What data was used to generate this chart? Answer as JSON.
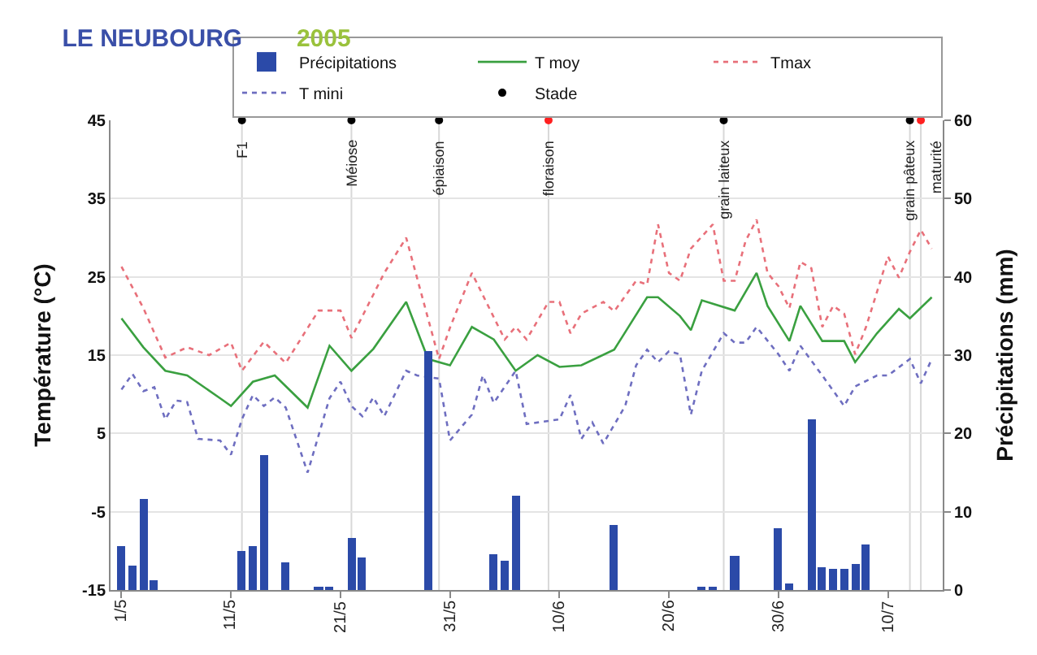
{
  "chart_data": {
    "type": "line",
    "title": "LE NEUBOURG",
    "subtitle": "2005",
    "ylabel": "Température (°C)",
    "y2label": "Précipitations (mm)",
    "xlim": [
      "2005-04-30",
      "2005-07-15"
    ],
    "xticks": [
      {
        "value": "2005-05-01",
        "label": "1/5"
      },
      {
        "value": "2005-05-11",
        "label": "11/5"
      },
      {
        "value": "2005-05-21",
        "label": "21/5"
      },
      {
        "value": "2005-05-31",
        "label": "31/5"
      },
      {
        "value": "2005-06-10",
        "label": "10/6"
      },
      {
        "value": "2005-06-20",
        "label": "20/6"
      },
      {
        "value": "2005-06-30",
        "label": "30/6"
      },
      {
        "value": "2005-07-10",
        "label": "10/7"
      }
    ],
    "ylim": [
      -15,
      45
    ],
    "yticks": [
      -15,
      -5,
      5,
      15,
      25,
      35,
      45
    ],
    "y2lim": [
      0,
      60
    ],
    "y2ticks": [
      0,
      10,
      20,
      30,
      40,
      50,
      60
    ],
    "grid": "y",
    "legend": "top right",
    "series": [
      {
        "name": "Précipitations",
        "type": "bar",
        "axis": "y2",
        "color": "#2b4aa8",
        "x": [
          "2005-05-01",
          "2005-05-02",
          "2005-05-03",
          "2005-05-04",
          "2005-05-12",
          "2005-05-13",
          "2005-05-14",
          "2005-05-16",
          "2005-05-19",
          "2005-05-20",
          "2005-05-22",
          "2005-05-23",
          "2005-05-29",
          "2005-06-04",
          "2005-06-05",
          "2005-06-06",
          "2005-06-15",
          "2005-06-23",
          "2005-06-24",
          "2005-06-26",
          "2005-06-30",
          "2005-07-01",
          "2005-07-03",
          "2005-07-04",
          "2005-07-05",
          "2005-07-06",
          "2005-07-07",
          "2005-07-08"
        ],
        "values": [
          5.6,
          3.1,
          11.6,
          1.2,
          5.0,
          5.6,
          17.2,
          3.5,
          0.4,
          0.4,
          6.6,
          4.1,
          30.5,
          4.6,
          3.7,
          12.0,
          8.3,
          0.3,
          0.3,
          4.3,
          7.9,
          0.9,
          21.8,
          3.0,
          2.6,
          2.6,
          3.4,
          5.9
        ]
      },
      {
        "name": "T moy",
        "line_style": "solid",
        "color": "#3aa040",
        "x": [
          "2005-05-01",
          "2005-05-03",
          "2005-05-05",
          "2005-05-07",
          "2005-05-10",
          "2005-05-11",
          "2005-05-13",
          "2005-05-15",
          "2005-05-18",
          "2005-05-20",
          "2005-05-22",
          "2005-05-24",
          "2005-05-27",
          "2005-05-29",
          "2005-05-31",
          "2005-06-02",
          "2005-06-04",
          "2005-06-06",
          "2005-06-08",
          "2005-06-10",
          "2005-06-12",
          "2005-06-15",
          "2005-06-18",
          "2005-06-19",
          "2005-06-21",
          "2005-06-22",
          "2005-06-23",
          "2005-06-26",
          "2005-06-28",
          "2005-06-29",
          "2005-07-01",
          "2005-07-02",
          "2005-07-04",
          "2005-07-06",
          "2005-07-07",
          "2005-07-09",
          "2005-07-11",
          "2005-07-12",
          "2005-07-14"
        ],
        "values": [
          19.7,
          16,
          13,
          12.4,
          9.5,
          8.5,
          11.6,
          12.4,
          8.3,
          16.2,
          13,
          15.8,
          21.8,
          14.5,
          13.7,
          18.6,
          17,
          13,
          15,
          13.5,
          13.7,
          15.7,
          22.4,
          22.4,
          20,
          18.2,
          22,
          20.7,
          25.5,
          21.3,
          16.8,
          21.3,
          16.8,
          16.8,
          14.1,
          17.8,
          20.9,
          19.7,
          22.4
        ]
      },
      {
        "name": "Tmax",
        "line_style": "dotted",
        "color": "#e8707a",
        "x": [
          "2005-05-01",
          "2005-05-03",
          "2005-05-05",
          "2005-05-07",
          "2005-05-09",
          "2005-05-11",
          "2005-05-12",
          "2005-05-14",
          "2005-05-16",
          "2005-05-19",
          "2005-05-21",
          "2005-05-22",
          "2005-05-25",
          "2005-05-27",
          "2005-05-30",
          "2005-05-31",
          "2005-06-02",
          "2005-06-05",
          "2005-06-06",
          "2005-06-07",
          "2005-06-09",
          "2005-06-10",
          "2005-06-11",
          "2005-06-12",
          "2005-06-14",
          "2005-06-15",
          "2005-06-17",
          "2005-06-18",
          "2005-06-19",
          "2005-06-20",
          "2005-06-21",
          "2005-06-22",
          "2005-06-24",
          "2005-06-25",
          "2005-06-26",
          "2005-06-27",
          "2005-06-28",
          "2005-06-29",
          "2005-06-30",
          "2005-07-01",
          "2005-07-02",
          "2005-07-03",
          "2005-07-04",
          "2005-07-05",
          "2005-07-06",
          "2005-07-07",
          "2005-07-08",
          "2005-07-10",
          "2005-07-11",
          "2005-07-12",
          "2005-07-13",
          "2005-07-14"
        ],
        "values": [
          26.3,
          21,
          14.7,
          16,
          15,
          16.6,
          13,
          16.7,
          14,
          20.7,
          20.7,
          17.2,
          25.5,
          30,
          14.5,
          18.5,
          25.5,
          17,
          18.6,
          17,
          21.8,
          21.8,
          17.8,
          20.3,
          21.8,
          20.6,
          24.5,
          24,
          31.7,
          25.5,
          24.5,
          28.6,
          31.7,
          24.5,
          24.5,
          29.6,
          32.3,
          25.5,
          23.8,
          21,
          26.9,
          26.1,
          18.6,
          21.3,
          20.3,
          15.1,
          18.6,
          27.6,
          24.9,
          28.2,
          31,
          28.6
        ]
      },
      {
        "name": "T mini",
        "line_style": "dotted",
        "color": "#6e6ec0",
        "x": [
          "2005-05-01",
          "2005-05-02",
          "2005-05-03",
          "2005-05-04",
          "2005-05-05",
          "2005-05-06",
          "2005-05-07",
          "2005-05-08",
          "2005-05-10",
          "2005-05-11",
          "2005-05-12",
          "2005-05-13",
          "2005-05-14",
          "2005-05-15",
          "2005-05-16",
          "2005-05-18",
          "2005-05-20",
          "2005-05-21",
          "2005-05-22",
          "2005-05-23",
          "2005-05-24",
          "2005-05-25",
          "2005-05-27",
          "2005-05-28",
          "2005-05-30",
          "2005-05-31",
          "2005-06-02",
          "2005-06-03",
          "2005-06-04",
          "2005-06-06",
          "2005-06-07",
          "2005-06-10",
          "2005-06-11",
          "2005-06-12",
          "2005-06-13",
          "2005-06-14",
          "2005-06-16",
          "2005-06-17",
          "2005-06-18",
          "2005-06-19",
          "2005-06-20",
          "2005-06-21",
          "2005-06-22",
          "2005-06-23",
          "2005-06-25",
          "2005-06-26",
          "2005-06-27",
          "2005-06-28",
          "2005-06-30",
          "2005-07-01",
          "2005-07-02",
          "2005-07-04",
          "2005-07-06",
          "2005-07-07",
          "2005-07-09",
          "2005-07-10",
          "2005-07-12",
          "2005-07-13",
          "2005-07-14"
        ],
        "values": [
          10.6,
          12.6,
          10.4,
          10.9,
          6.8,
          9.2,
          9,
          4.3,
          4.1,
          2.3,
          6.8,
          9.9,
          8.5,
          9.6,
          8.3,
          0,
          9.5,
          11.6,
          8.5,
          7.2,
          9.6,
          7.2,
          13,
          12.4,
          12,
          4.1,
          7.4,
          12.4,
          8.9,
          13,
          6.2,
          6.8,
          9.9,
          4.3,
          6.4,
          3.7,
          8.5,
          13.7,
          15.7,
          14.1,
          15.5,
          15.1,
          7.4,
          13,
          17.8,
          16.6,
          16.6,
          18.6,
          15.1,
          13,
          16.2,
          12.4,
          8.5,
          11,
          12.4,
          12.4,
          14.5,
          11.4,
          14.5
        ]
      },
      {
        "name": "Stade",
        "type": "scatter",
        "marker": "circle",
        "x": [
          "2005-05-12",
          "2005-05-22",
          "2005-05-30",
          "2005-06-09",
          "2005-06-25",
          "2005-07-12",
          "2005-07-13"
        ],
        "values": [
          45,
          45,
          45,
          45,
          45,
          45,
          45
        ],
        "colors": [
          "#000000",
          "#000000",
          "#000000",
          "#ff2020",
          "#000000",
          "#000000",
          "#ff2020"
        ]
      }
    ],
    "ref_lines": [
      {
        "axis": "x",
        "value": "2005-05-12",
        "label": "F1",
        "color": "#d8d8d8"
      },
      {
        "axis": "x",
        "value": "2005-05-22",
        "label": "Méiose",
        "color": "#d8d8d8"
      },
      {
        "axis": "x",
        "value": "2005-05-30",
        "label": "épiaison",
        "color": "#d8d8d8"
      },
      {
        "axis": "x",
        "value": "2005-06-09",
        "label": "floraison",
        "color": "#d8d8d8"
      },
      {
        "axis": "x",
        "value": "2005-06-25",
        "label": "grain laiteux",
        "color": "#d8d8d8"
      },
      {
        "axis": "x",
        "value": "2005-07-12",
        "label": "grain pâteux",
        "color": "#d8d8d8"
      },
      {
        "axis": "x",
        "value": "2005-07-13",
        "label": "maturité",
        "color": "#d8d8d8"
      }
    ]
  }
}
